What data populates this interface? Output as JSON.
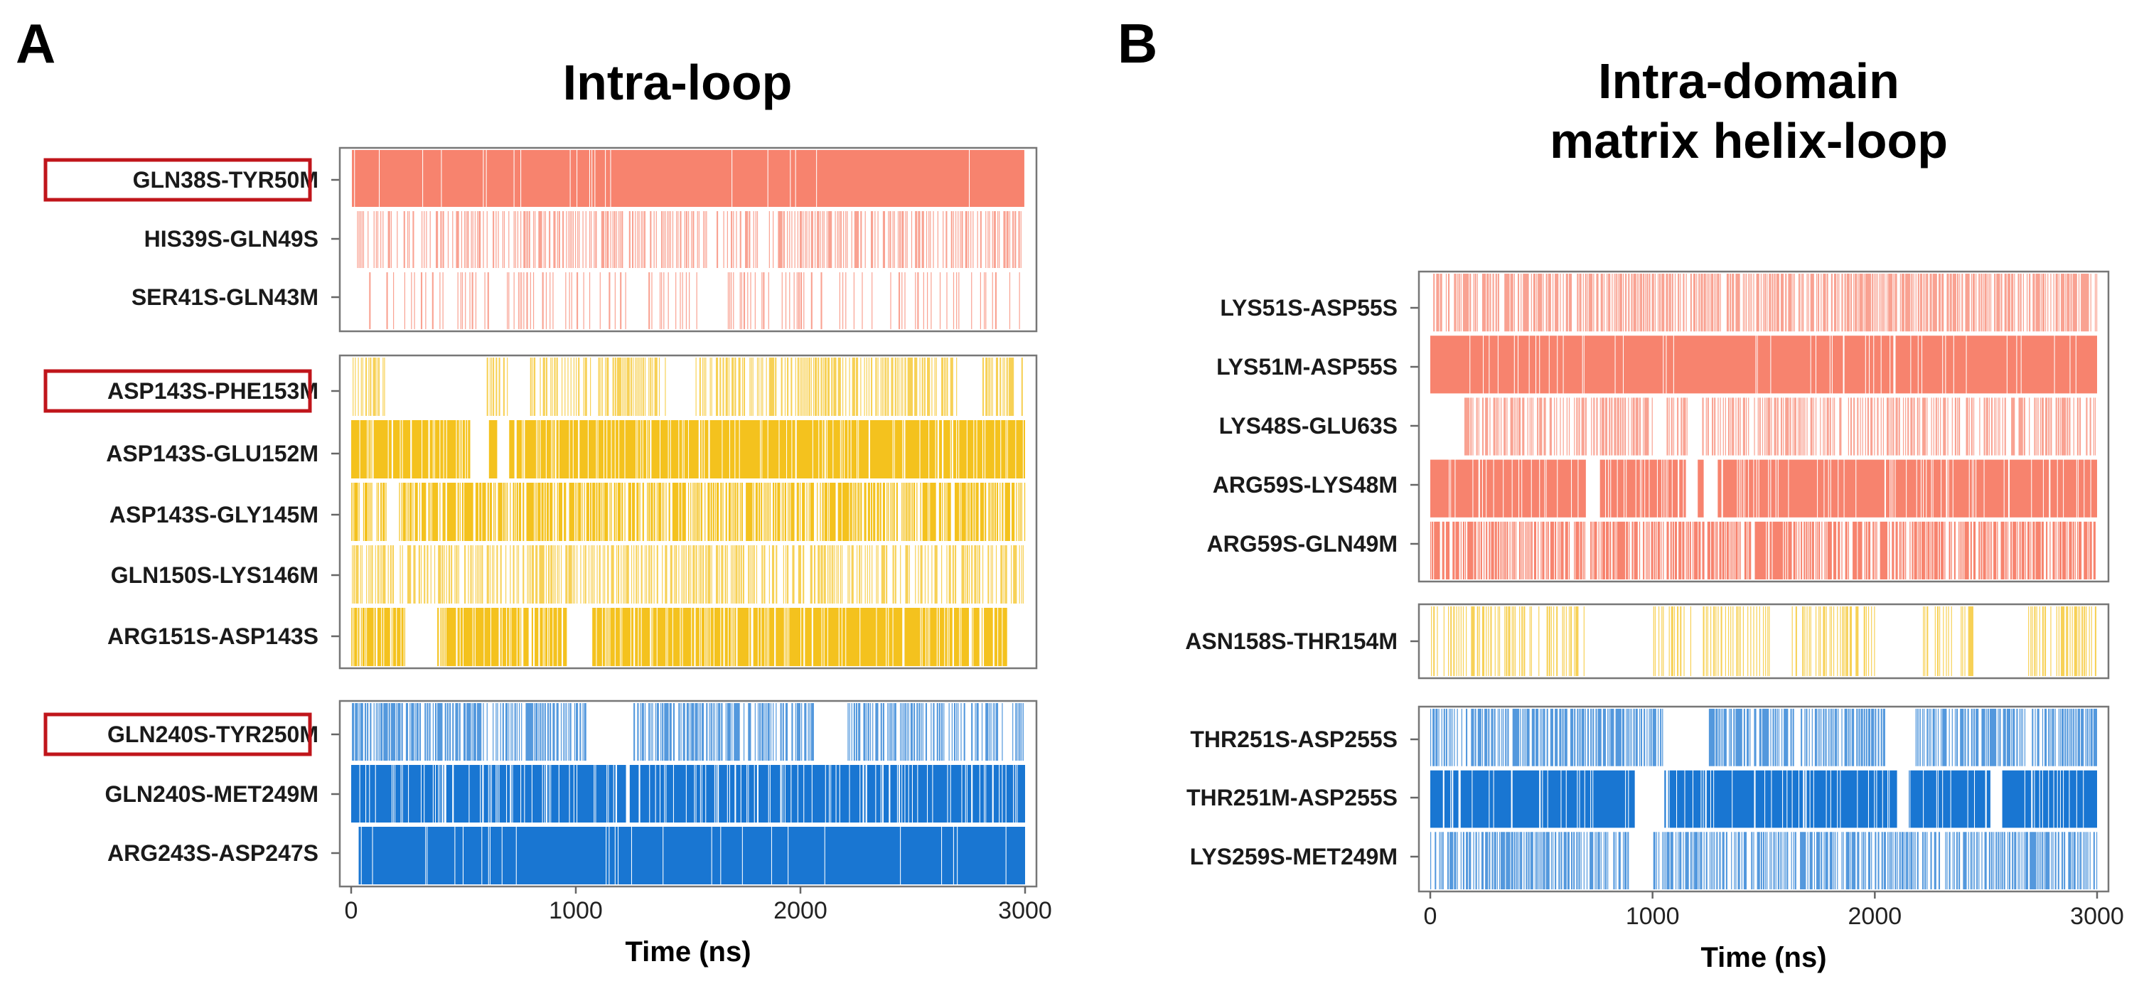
{
  "chart_data": [
    {
      "type": "barcode",
      "panel_letter": "A",
      "title": "Intra-loop",
      "xlabel": "Time (ns)",
      "xlim": [
        0,
        3000
      ],
      "xticks": [
        0,
        1000,
        2000,
        3000
      ],
      "groups": [
        {
          "color": "#f7836e",
          "rows": [
            {
              "label": "GLN38S-TYR50M",
              "highlighted": true,
              "occupancy": 0.97,
              "gaps": [
                [
                  0,
                  0
                ]
              ]
            },
            {
              "label": "HIS39S-GLN49S",
              "highlighted": false,
              "occupancy": 0.35,
              "gaps": []
            },
            {
              "label": "SER41S-GLN43M",
              "highlighted": false,
              "occupancy": 0.15,
              "gaps": [
                [
                  0,
                  60
                ],
                [
                  1240,
                  1320
                ],
                [
                  1560,
                  1620
                ]
              ]
            }
          ]
        },
        {
          "color": "#f4c21e",
          "rows": [
            {
              "label": "ASP143S-PHE153M",
              "highlighted": true,
              "occupancy": 0.45,
              "gaps": [
                [
                  150,
                  600
                ],
                [
                  700,
                  780
                ],
                [
                  1400,
                  1530
                ],
                [
                  2700,
                  2800
                ]
              ]
            },
            {
              "label": "ASP143S-GLU152M",
              "highlighted": false,
              "occupancy": 0.85,
              "gaps": [
                [
                  530,
                  610
                ],
                [
                  650,
                  700
                ]
              ]
            },
            {
              "label": "ASP143S-GLY145M",
              "highlighted": false,
              "occupancy": 0.6,
              "gaps": [
                [
                  160,
                  210
                ]
              ]
            },
            {
              "label": "GLN150S-LYS146M",
              "highlighted": false,
              "occupancy": 0.4,
              "gaps": []
            },
            {
              "label": "ARG151S-ASP143S",
              "highlighted": false,
              "occupancy": 0.8,
              "gaps": [
                [
                  240,
                  380
                ],
                [
                  960,
                  1070
                ],
                [
                  2920,
                  3000
                ]
              ]
            }
          ]
        },
        {
          "color": "#1976d2",
          "rows": [
            {
              "label": "GLN240S-TYR250M",
              "highlighted": true,
              "occupancy": 0.5,
              "gaps": [
                [
                  1050,
                  1250
                ],
                [
                  2060,
                  2200
                ],
                [
                  2900,
                  2940
                ]
              ]
            },
            {
              "label": "GLN240S-MET249M",
              "highlighted": false,
              "occupancy": 0.85,
              "gaps": []
            },
            {
              "label": "ARG243S-ASP247S",
              "highlighted": false,
              "occupancy": 0.97,
              "gaps": [
                [
                  0,
                  30
                ]
              ]
            }
          ]
        }
      ]
    },
    {
      "type": "barcode",
      "panel_letter": "B",
      "title": "Intra-domain\nmatrix helix-loop",
      "title_lines": [
        "Intra-domain",
        "matrix helix-loop"
      ],
      "xlabel": "Time (ns)",
      "xlim": [
        0,
        3000
      ],
      "xticks": [
        0,
        1000,
        2000,
        3000
      ],
      "groups": [
        {
          "color": "#f7836e",
          "rows": [
            {
              "label": "LYS51S-ASP55S",
              "highlighted": false,
              "occupancy": 0.55,
              "gaps": []
            },
            {
              "label": "LYS51M-ASP55S",
              "highlighted": false,
              "occupancy": 0.95,
              "gaps": []
            },
            {
              "label": "LYS48S-GLU63S",
              "highlighted": false,
              "occupancy": 0.45,
              "gaps": [
                [
                  0,
                  150
                ],
                [
                  1000,
                  1060
                ],
                [
                  1160,
                  1220
                ]
              ]
            },
            {
              "label": "ARG59S-LYS48M",
              "highlighted": false,
              "occupancy": 0.9,
              "gaps": [
                [
                  700,
                  760
                ],
                [
                  1150,
                  1200
                ],
                [
                  1230,
                  1290
                ]
              ]
            },
            {
              "label": "ARG59S-GLN49M",
              "highlighted": false,
              "occupancy": 0.6,
              "gaps": []
            }
          ]
        },
        {
          "color": "#f4c21e",
          "rows": [
            {
              "label": "ASN158S-THR154M",
              "highlighted": false,
              "occupancy": 0.3,
              "gaps": [
                [
                  700,
                  1000
                ],
                [
                  1530,
                  1620
                ],
                [
                  2000,
                  2200
                ],
                [
                  2450,
                  2650
                ]
              ]
            }
          ]
        },
        {
          "color": "#1976d2",
          "rows": [
            {
              "label": "THR251S-ASP255S",
              "highlighted": false,
              "occupancy": 0.55,
              "gaps": [
                [
                  1050,
                  1250
                ],
                [
                  2050,
                  2180
                ]
              ]
            },
            {
              "label": "THR251M-ASP255S",
              "highlighted": false,
              "occupancy": 0.9,
              "gaps": [
                [
                  920,
                  1050
                ],
                [
                  2100,
                  2150
                ],
                [
                  2520,
                  2570
                ]
              ]
            },
            {
              "label": "LYS259S-MET249M",
              "highlighted": false,
              "occupancy": 0.5,
              "gaps": [
                [
                  900,
                  1000
                ]
              ]
            }
          ]
        }
      ]
    }
  ]
}
